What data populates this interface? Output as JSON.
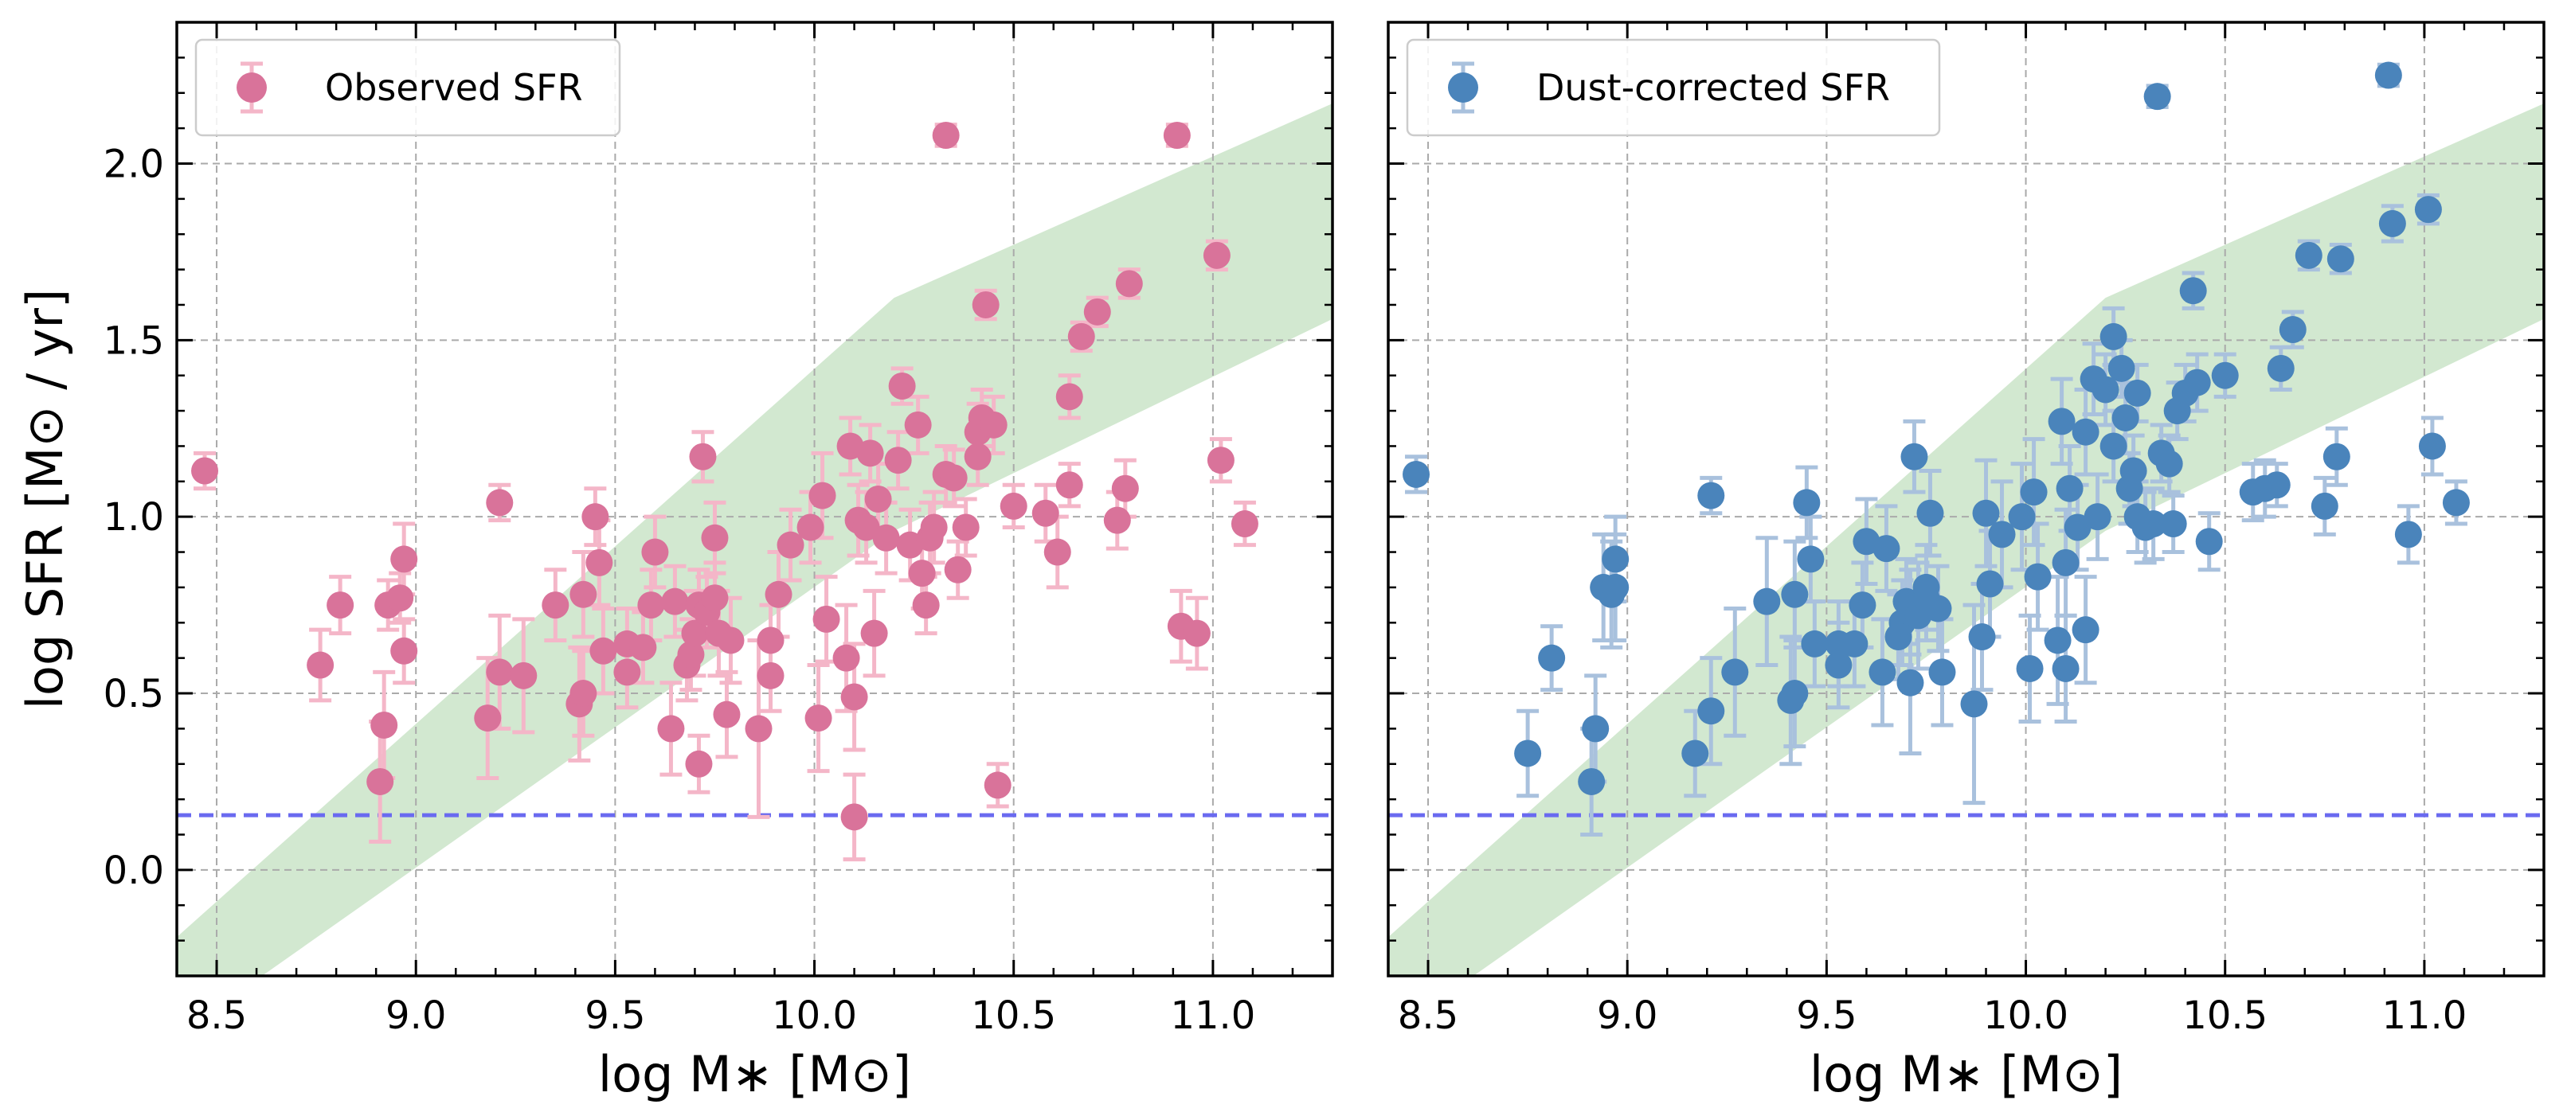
{
  "chart_data": [
    {
      "type": "scatter",
      "panel": "left",
      "legend": "Observed SFR",
      "legend_position": "top-left",
      "xlabel": "log M∗ [M⊙]",
      "ylabel": "log SFR [M⊙ / yr]",
      "xlim": [
        8.4,
        11.3
      ],
      "ylim": [
        -0.3,
        2.4
      ],
      "xticks": [
        "8.5",
        "9.0",
        "9.5",
        "10.0",
        "10.5",
        "11.0"
      ],
      "yticks": [
        "0.0",
        "0.5",
        "1.0",
        "1.5",
        "2.0"
      ],
      "grid": true,
      "colors": {
        "marker": "#D9739A",
        "errorbar": "#F4B6C8",
        "band": "#D2E8D0",
        "hline": "#6A6AF0"
      },
      "reference_line_y": 0.155,
      "main_sequence_band": {
        "x": [
          8.4,
          10.2,
          11.3
        ],
        "lower": [
          -0.47,
          0.96,
          1.56
        ],
        "upper": [
          -0.19,
          1.62,
          2.17
        ]
      },
      "points": [
        {
          "x": 8.47,
          "y": 1.13,
          "err": 0.05
        },
        {
          "x": 8.76,
          "y": 0.58,
          "err": 0.1
        },
        {
          "x": 8.81,
          "y": 0.75,
          "err": 0.08
        },
        {
          "x": 8.91,
          "y": 0.25,
          "err": 0.17
        },
        {
          "x": 8.92,
          "y": 0.41,
          "err": 0.15
        },
        {
          "x": 8.93,
          "y": 0.75,
          "err": 0.07
        },
        {
          "x": 8.96,
          "y": 0.77,
          "err": 0.07
        },
        {
          "x": 8.97,
          "y": 0.88,
          "err": 0.1
        },
        {
          "x": 8.97,
          "y": 0.62,
          "err": 0.09
        },
        {
          "x": 9.18,
          "y": 0.43,
          "err": 0.17
        },
        {
          "x": 9.21,
          "y": 1.04,
          "err": 0.05
        },
        {
          "x": 9.21,
          "y": 0.56,
          "err": 0.16
        },
        {
          "x": 9.27,
          "y": 0.55,
          "err": 0.16
        },
        {
          "x": 9.35,
          "y": 0.75,
          "err": 0.1
        },
        {
          "x": 9.41,
          "y": 0.47,
          "err": 0.16
        },
        {
          "x": 9.42,
          "y": 0.5,
          "err": 0.12
        },
        {
          "x": 9.42,
          "y": 0.78,
          "err": 0.12
        },
        {
          "x": 9.45,
          "y": 1.0,
          "err": 0.08
        },
        {
          "x": 9.46,
          "y": 0.87,
          "err": 0.12
        },
        {
          "x": 9.47,
          "y": 0.62,
          "err": 0.12
        },
        {
          "x": 9.53,
          "y": 0.56,
          "err": 0.1
        },
        {
          "x": 9.53,
          "y": 0.64,
          "err": 0.1
        },
        {
          "x": 9.57,
          "y": 0.63,
          "err": 0.1
        },
        {
          "x": 9.59,
          "y": 0.75,
          "err": 0.1
        },
        {
          "x": 9.6,
          "y": 0.9,
          "err": 0.1
        },
        {
          "x": 9.64,
          "y": 0.4,
          "err": 0.13
        },
        {
          "x": 9.65,
          "y": 0.76,
          "err": 0.1
        },
        {
          "x": 9.68,
          "y": 0.58,
          "err": 0.1
        },
        {
          "x": 9.69,
          "y": 0.61,
          "err": 0.1
        },
        {
          "x": 9.7,
          "y": 0.67,
          "err": 0.12
        },
        {
          "x": 9.71,
          "y": 0.75,
          "err": 0.1
        },
        {
          "x": 9.72,
          "y": 1.17,
          "err": 0.07
        },
        {
          "x": 9.71,
          "y": 0.3,
          "err": 0.08
        },
        {
          "x": 9.73,
          "y": 0.73,
          "err": 0.1
        },
        {
          "x": 9.75,
          "y": 0.94,
          "err": 0.1
        },
        {
          "x": 9.75,
          "y": 0.77,
          "err": 0.1
        },
        {
          "x": 9.76,
          "y": 0.67,
          "err": 0.12
        },
        {
          "x": 9.78,
          "y": 0.44,
          "err": 0.12
        },
        {
          "x": 9.79,
          "y": 0.65,
          "err": 0.12
        },
        {
          "x": 9.86,
          "y": 0.4,
          "err": 0.25
        },
        {
          "x": 9.89,
          "y": 0.65,
          "err": 0.1
        },
        {
          "x": 9.89,
          "y": 0.55,
          "err": 0.1
        },
        {
          "x": 9.91,
          "y": 0.78,
          "err": 0.12
        },
        {
          "x": 9.94,
          "y": 0.92,
          "err": 0.1
        },
        {
          "x": 9.99,
          "y": 0.97,
          "err": 0.1
        },
        {
          "x": 10.01,
          "y": 0.43,
          "err": 0.15
        },
        {
          "x": 10.02,
          "y": 1.06,
          "err": 0.12
        },
        {
          "x": 10.03,
          "y": 0.71,
          "err": 0.12
        },
        {
          "x": 10.08,
          "y": 0.6,
          "err": 0.15
        },
        {
          "x": 10.09,
          "y": 1.2,
          "err": 0.08
        },
        {
          "x": 10.1,
          "y": 0.15,
          "err": 0.12
        },
        {
          "x": 10.1,
          "y": 0.49,
          "err": 0.15
        },
        {
          "x": 10.11,
          "y": 0.99,
          "err": 0.1
        },
        {
          "x": 10.13,
          "y": 0.97,
          "err": 0.1
        },
        {
          "x": 10.14,
          "y": 1.18,
          "err": 0.08
        },
        {
          "x": 10.15,
          "y": 0.67,
          "err": 0.12
        },
        {
          "x": 10.16,
          "y": 1.05,
          "err": 0.1
        },
        {
          "x": 10.18,
          "y": 0.94,
          "err": 0.1
        },
        {
          "x": 10.21,
          "y": 1.16,
          "err": 0.08
        },
        {
          "x": 10.22,
          "y": 1.37,
          "err": 0.05
        },
        {
          "x": 10.24,
          "y": 0.92,
          "err": 0.1
        },
        {
          "x": 10.26,
          "y": 1.26,
          "err": 0.08
        },
        {
          "x": 10.27,
          "y": 0.84,
          "err": 0.1
        },
        {
          "x": 10.28,
          "y": 0.75,
          "err": 0.08
        },
        {
          "x": 10.29,
          "y": 0.94,
          "err": 0.1
        },
        {
          "x": 10.3,
          "y": 0.97,
          "err": 0.1
        },
        {
          "x": 10.33,
          "y": 1.12,
          "err": 0.08
        },
        {
          "x": 10.33,
          "y": 2.08,
          "err": 0.03
        },
        {
          "x": 10.35,
          "y": 1.11,
          "err": 0.08
        },
        {
          "x": 10.36,
          "y": 0.85,
          "err": 0.08
        },
        {
          "x": 10.38,
          "y": 0.97,
          "err": 0.08
        },
        {
          "x": 10.41,
          "y": 1.24,
          "err": 0.08
        },
        {
          "x": 10.41,
          "y": 1.17,
          "err": 0.08
        },
        {
          "x": 10.42,
          "y": 1.28,
          "err": 0.08
        },
        {
          "x": 10.43,
          "y": 1.6,
          "err": 0.04
        },
        {
          "x": 10.45,
          "y": 1.26,
          "err": 0.08
        },
        {
          "x": 10.46,
          "y": 0.24,
          "err": 0.06
        },
        {
          "x": 10.5,
          "y": 1.03,
          "err": 0.06
        },
        {
          "x": 10.58,
          "y": 1.01,
          "err": 0.08
        },
        {
          "x": 10.61,
          "y": 0.9,
          "err": 0.1
        },
        {
          "x": 10.64,
          "y": 1.09,
          "err": 0.06
        },
        {
          "x": 10.64,
          "y": 1.34,
          "err": 0.06
        },
        {
          "x": 10.67,
          "y": 1.51,
          "err": 0.04
        },
        {
          "x": 10.71,
          "y": 1.58,
          "err": 0.04
        },
        {
          "x": 10.76,
          "y": 0.99,
          "err": 0.08
        },
        {
          "x": 10.78,
          "y": 1.08,
          "err": 0.08
        },
        {
          "x": 10.79,
          "y": 1.66,
          "err": 0.04
        },
        {
          "x": 10.91,
          "y": 2.08,
          "err": 0.03
        },
        {
          "x": 10.92,
          "y": 0.69,
          "err": 0.1
        },
        {
          "x": 10.96,
          "y": 0.67,
          "err": 0.1
        },
        {
          "x": 11.01,
          "y": 1.74,
          "err": 0.04
        },
        {
          "x": 11.02,
          "y": 1.16,
          "err": 0.06
        },
        {
          "x": 11.08,
          "y": 0.98,
          "err": 0.06
        }
      ]
    },
    {
      "type": "scatter",
      "panel": "right",
      "legend": "Dust-corrected SFR",
      "legend_position": "top-left",
      "xlabel": "log M∗ [M⊙]",
      "ylabel": "",
      "xlim": [
        8.4,
        11.3
      ],
      "ylim": [
        -0.3,
        2.4
      ],
      "xticks": [
        "8.5",
        "9.0",
        "9.5",
        "10.0",
        "10.5",
        "11.0"
      ],
      "yticks": [],
      "grid": true,
      "colors": {
        "marker": "#4A84BB",
        "errorbar": "#A9C1DD",
        "band": "#D2E8D0",
        "hline": "#6A6AF0"
      },
      "reference_line_y": 0.155,
      "main_sequence_band": {
        "x": [
          8.4,
          10.2,
          11.3
        ],
        "lower": [
          -0.47,
          0.96,
          1.56
        ],
        "upper": [
          -0.19,
          1.62,
          2.17
        ]
      },
      "points": [
        {
          "x": 8.47,
          "y": 1.12,
          "err": 0.05
        },
        {
          "x": 8.75,
          "y": 0.33,
          "err": 0.12
        },
        {
          "x": 8.81,
          "y": 0.6,
          "err": 0.09
        },
        {
          "x": 8.91,
          "y": 0.25,
          "err": 0.15
        },
        {
          "x": 8.92,
          "y": 0.4,
          "err": 0.15
        },
        {
          "x": 8.94,
          "y": 0.8,
          "err": 0.15
        },
        {
          "x": 8.96,
          "y": 0.78,
          "err": 0.15
        },
        {
          "x": 8.97,
          "y": 0.8,
          "err": 0.15
        },
        {
          "x": 8.97,
          "y": 0.88,
          "err": 0.12
        },
        {
          "x": 9.17,
          "y": 0.33,
          "err": 0.12
        },
        {
          "x": 9.21,
          "y": 1.06,
          "err": 0.05
        },
        {
          "x": 9.21,
          "y": 0.45,
          "err": 0.15
        },
        {
          "x": 9.27,
          "y": 0.56,
          "err": 0.18
        },
        {
          "x": 9.35,
          "y": 0.76,
          "err": 0.18
        },
        {
          "x": 9.41,
          "y": 0.48,
          "err": 0.18
        },
        {
          "x": 9.42,
          "y": 0.5,
          "err": 0.15
        },
        {
          "x": 9.42,
          "y": 0.78,
          "err": 0.15
        },
        {
          "x": 9.45,
          "y": 1.04,
          "err": 0.1
        },
        {
          "x": 9.46,
          "y": 0.88,
          "err": 0.12
        },
        {
          "x": 9.47,
          "y": 0.64,
          "err": 0.12
        },
        {
          "x": 9.53,
          "y": 0.58,
          "err": 0.12
        },
        {
          "x": 9.53,
          "y": 0.64,
          "err": 0.12
        },
        {
          "x": 9.57,
          "y": 0.64,
          "err": 0.12
        },
        {
          "x": 9.59,
          "y": 0.75,
          "err": 0.12
        },
        {
          "x": 9.6,
          "y": 0.93,
          "err": 0.12
        },
        {
          "x": 9.64,
          "y": 0.56,
          "err": 0.15
        },
        {
          "x": 9.65,
          "y": 0.91,
          "err": 0.12
        },
        {
          "x": 9.68,
          "y": 0.66,
          "err": 0.12
        },
        {
          "x": 9.69,
          "y": 0.7,
          "err": 0.12
        },
        {
          "x": 9.7,
          "y": 0.76,
          "err": 0.12
        },
        {
          "x": 9.71,
          "y": 0.73,
          "err": 0.12
        },
        {
          "x": 9.71,
          "y": 0.53,
          "err": 0.2
        },
        {
          "x": 9.72,
          "y": 1.17,
          "err": 0.1
        },
        {
          "x": 9.73,
          "y": 0.72,
          "err": 0.15
        },
        {
          "x": 9.75,
          "y": 0.77,
          "err": 0.12
        },
        {
          "x": 9.75,
          "y": 0.8,
          "err": 0.12
        },
        {
          "x": 9.76,
          "y": 1.01,
          "err": 0.12
        },
        {
          "x": 9.78,
          "y": 0.74,
          "err": 0.12
        },
        {
          "x": 9.79,
          "y": 0.56,
          "err": 0.15
        },
        {
          "x": 9.87,
          "y": 0.47,
          "err": 0.28
        },
        {
          "x": 9.89,
          "y": 0.66,
          "err": 0.15
        },
        {
          "x": 9.9,
          "y": 1.01,
          "err": 0.15
        },
        {
          "x": 9.91,
          "y": 0.81,
          "err": 0.15
        },
        {
          "x": 9.94,
          "y": 0.95,
          "err": 0.15
        },
        {
          "x": 9.99,
          "y": 1.0,
          "err": 0.15
        },
        {
          "x": 10.01,
          "y": 0.57,
          "err": 0.15
        },
        {
          "x": 10.02,
          "y": 1.07,
          "err": 0.15
        },
        {
          "x": 10.03,
          "y": 0.83,
          "err": 0.15
        },
        {
          "x": 10.08,
          "y": 0.65,
          "err": 0.18
        },
        {
          "x": 10.09,
          "y": 1.27,
          "err": 0.12
        },
        {
          "x": 10.1,
          "y": 0.57,
          "err": 0.15
        },
        {
          "x": 10.1,
          "y": 0.87,
          "err": 0.15
        },
        {
          "x": 10.11,
          "y": 1.08,
          "err": 0.12
        },
        {
          "x": 10.13,
          "y": 0.97,
          "err": 0.12
        },
        {
          "x": 10.15,
          "y": 1.24,
          "err": 0.12
        },
        {
          "x": 10.15,
          "y": 0.68,
          "err": 0.15
        },
        {
          "x": 10.17,
          "y": 1.39,
          "err": 0.1
        },
        {
          "x": 10.18,
          "y": 1.0,
          "err": 0.12
        },
        {
          "x": 10.2,
          "y": 1.36,
          "err": 0.1
        },
        {
          "x": 10.22,
          "y": 1.2,
          "err": 0.1
        },
        {
          "x": 10.22,
          "y": 1.51,
          "err": 0.08
        },
        {
          "x": 10.24,
          "y": 1.42,
          "err": 0.08
        },
        {
          "x": 10.25,
          "y": 1.28,
          "err": 0.1
        },
        {
          "x": 10.26,
          "y": 1.08,
          "err": 0.1
        },
        {
          "x": 10.27,
          "y": 1.13,
          "err": 0.1
        },
        {
          "x": 10.28,
          "y": 1.35,
          "err": 0.08
        },
        {
          "x": 10.28,
          "y": 1.0,
          "err": 0.1
        },
        {
          "x": 10.3,
          "y": 0.97,
          "err": 0.1
        },
        {
          "x": 10.32,
          "y": 0.98,
          "err": 0.1
        },
        {
          "x": 10.33,
          "y": 2.19,
          "err": 0.03
        },
        {
          "x": 10.34,
          "y": 1.18,
          "err": 0.08
        },
        {
          "x": 10.36,
          "y": 1.15,
          "err": 0.08
        },
        {
          "x": 10.37,
          "y": 0.98,
          "err": 0.08
        },
        {
          "x": 10.38,
          "y": 1.3,
          "err": 0.08
        },
        {
          "x": 10.4,
          "y": 1.35,
          "err": 0.08
        },
        {
          "x": 10.42,
          "y": 1.64,
          "err": 0.05
        },
        {
          "x": 10.43,
          "y": 1.38,
          "err": 0.08
        },
        {
          "x": 10.46,
          "y": 0.93,
          "err": 0.08
        },
        {
          "x": 10.5,
          "y": 1.4,
          "err": 0.06
        },
        {
          "x": 10.57,
          "y": 1.07,
          "err": 0.08
        },
        {
          "x": 10.6,
          "y": 1.08,
          "err": 0.08
        },
        {
          "x": 10.63,
          "y": 1.09,
          "err": 0.06
        },
        {
          "x": 10.64,
          "y": 1.42,
          "err": 0.06
        },
        {
          "x": 10.67,
          "y": 1.53,
          "err": 0.05
        },
        {
          "x": 10.71,
          "y": 1.74,
          "err": 0.04
        },
        {
          "x": 10.75,
          "y": 1.03,
          "err": 0.08
        },
        {
          "x": 10.78,
          "y": 1.17,
          "err": 0.08
        },
        {
          "x": 10.79,
          "y": 1.73,
          "err": 0.04
        },
        {
          "x": 10.91,
          "y": 2.25,
          "err": 0.03
        },
        {
          "x": 10.92,
          "y": 1.83,
          "err": 0.05
        },
        {
          "x": 10.96,
          "y": 0.95,
          "err": 0.08
        },
        {
          "x": 11.01,
          "y": 1.87,
          "err": 0.04
        },
        {
          "x": 11.02,
          "y": 1.2,
          "err": 0.08
        },
        {
          "x": 11.08,
          "y": 1.04,
          "err": 0.06
        }
      ]
    }
  ]
}
